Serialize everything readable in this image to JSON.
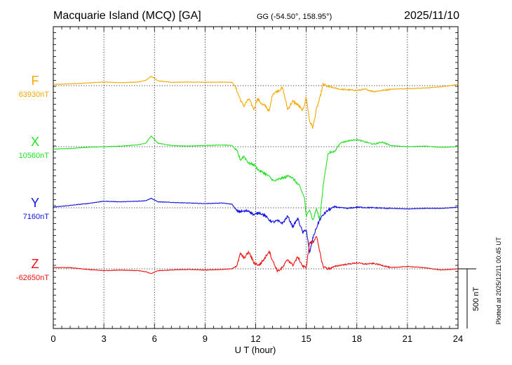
{
  "header": {
    "title": "Macquarie Island (MCQ)  [GA]",
    "coords": "GG (-54.50°, 158.95°)",
    "date": "2025/11/10"
  },
  "xaxis": {
    "label": "U T (hour)",
    "ticks": [
      "0",
      "3",
      "6",
      "9",
      "12",
      "15",
      "18",
      "21",
      "24"
    ]
  },
  "scale_bar": {
    "label": "500 nT",
    "value_nT": 500
  },
  "plotted_note": "Plotted at 2025/12/11 00:45 UT",
  "chart_data": {
    "type": "line",
    "title": "Macquarie Island (MCQ)  [GA]",
    "xlabel": "U T (hour)",
    "xlim": [
      0,
      24
    ],
    "scale_nT_per_division": 500,
    "grid": true,
    "series": [
      {
        "name": "F",
        "baseline_label": "63930nT",
        "baseline_nT": 63930,
        "color": "#f5a800",
        "points": [
          [
            0,
            10
          ],
          [
            1,
            15
          ],
          [
            2,
            22
          ],
          [
            3,
            30
          ],
          [
            4,
            25
          ],
          [
            5,
            30
          ],
          [
            5.5,
            45
          ],
          [
            5.8,
            80
          ],
          [
            6.2,
            40
          ],
          [
            7,
            28
          ],
          [
            8,
            30
          ],
          [
            9,
            28
          ],
          [
            10,
            30
          ],
          [
            10.6,
            28
          ],
          [
            10.8,
            -10
          ],
          [
            11.1,
            -120
          ],
          [
            11.3,
            -170
          ],
          [
            11.6,
            -110
          ],
          [
            11.9,
            -200
          ],
          [
            12.1,
            -110
          ],
          [
            12.4,
            -160
          ],
          [
            12.6,
            -170
          ],
          [
            12.8,
            -220
          ],
          [
            13.0,
            -70
          ],
          [
            13.3,
            -45
          ],
          [
            13.6,
            -20
          ],
          [
            13.9,
            -200
          ],
          [
            14.2,
            -130
          ],
          [
            14.5,
            -160
          ],
          [
            14.8,
            -210
          ],
          [
            15.0,
            -95
          ],
          [
            15.2,
            -300
          ],
          [
            15.4,
            -350
          ],
          [
            15.6,
            -200
          ],
          [
            15.8,
            -110
          ],
          [
            16.0,
            10
          ],
          [
            16.3,
            -10
          ],
          [
            16.7,
            -20
          ],
          [
            17,
            -30
          ],
          [
            17.5,
            -35
          ],
          [
            18,
            -40
          ],
          [
            18.5,
            -30
          ],
          [
            19,
            -50
          ],
          [
            19.5,
            -40
          ],
          [
            20,
            -30
          ],
          [
            21,
            -25
          ],
          [
            22,
            -20
          ],
          [
            23,
            -10
          ],
          [
            24,
            10
          ]
        ]
      },
      {
        "name": "X",
        "baseline_label": "10560nT",
        "baseline_nT": 10560,
        "color": "#22e022",
        "points": [
          [
            0,
            -20
          ],
          [
            1,
            -15
          ],
          [
            2,
            -5
          ],
          [
            3,
            0
          ],
          [
            4,
            5
          ],
          [
            5,
            15
          ],
          [
            5.5,
            30
          ],
          [
            5.8,
            90
          ],
          [
            6.2,
            30
          ],
          [
            7,
            10
          ],
          [
            8,
            5
          ],
          [
            9,
            10
          ],
          [
            10,
            15
          ],
          [
            10.6,
            10
          ],
          [
            10.9,
            -40
          ],
          [
            11.1,
            -110
          ],
          [
            11.3,
            -80
          ],
          [
            11.6,
            -140
          ],
          [
            11.9,
            -150
          ],
          [
            12.2,
            -200
          ],
          [
            12.5,
            -220
          ],
          [
            12.8,
            -250
          ],
          [
            13.1,
            -290
          ],
          [
            13.4,
            -270
          ],
          [
            13.7,
            -260
          ],
          [
            14.0,
            -240
          ],
          [
            14.3,
            -280
          ],
          [
            14.6,
            -330
          ],
          [
            14.9,
            -430
          ],
          [
            15.0,
            -590
          ],
          [
            15.2,
            -520
          ],
          [
            15.4,
            -620
          ],
          [
            15.6,
            -520
          ],
          [
            15.8,
            -610
          ],
          [
            16.0,
            -330
          ],
          [
            16.3,
            -50
          ],
          [
            16.7,
            -40
          ],
          [
            17,
            30
          ],
          [
            17.5,
            50
          ],
          [
            18,
            60
          ],
          [
            18.5,
            40
          ],
          [
            19,
            20
          ],
          [
            19.5,
            40
          ],
          [
            20,
            10
          ],
          [
            21,
            0
          ],
          [
            22,
            5
          ],
          [
            23,
            -5
          ],
          [
            24,
            0
          ]
        ]
      },
      {
        "name": "Y",
        "baseline_label": "7160nT",
        "baseline_nT": 7160,
        "color": "#1010e0",
        "points": [
          [
            0,
            5
          ],
          [
            1,
            20
          ],
          [
            2,
            35
          ],
          [
            3,
            55
          ],
          [
            4,
            50
          ],
          [
            5,
            55
          ],
          [
            5.5,
            60
          ],
          [
            5.8,
            80
          ],
          [
            6.2,
            50
          ],
          [
            7,
            45
          ],
          [
            8,
            40
          ],
          [
            9,
            35
          ],
          [
            10,
            40
          ],
          [
            10.6,
            30
          ],
          [
            10.9,
            -30
          ],
          [
            11.3,
            -30
          ],
          [
            11.6,
            -25
          ],
          [
            11.9,
            -60
          ],
          [
            12.2,
            -40
          ],
          [
            12.5,
            -60
          ],
          [
            12.8,
            -100
          ],
          [
            13.0,
            -120
          ],
          [
            13.3,
            -110
          ],
          [
            13.6,
            -130
          ],
          [
            13.9,
            -70
          ],
          [
            14.2,
            -160
          ],
          [
            14.5,
            -90
          ],
          [
            14.8,
            -210
          ],
          [
            15.0,
            -180
          ],
          [
            15.2,
            -380
          ],
          [
            15.4,
            -250
          ],
          [
            15.6,
            -170
          ],
          [
            15.8,
            -100
          ],
          [
            16.0,
            -60
          ],
          [
            16.3,
            -20
          ],
          [
            16.7,
            10
          ],
          [
            17,
            0
          ],
          [
            17.5,
            -5
          ],
          [
            18,
            5
          ],
          [
            19,
            0
          ],
          [
            20,
            -5
          ],
          [
            21,
            -10
          ],
          [
            22,
            -5
          ],
          [
            23,
            -5
          ],
          [
            24,
            5
          ]
        ]
      },
      {
        "name": "Z",
        "baseline_label": "-62650nT",
        "baseline_nT": -62650,
        "color": "#ee1010",
        "points": [
          [
            0,
            10
          ],
          [
            1,
            10
          ],
          [
            2,
            -5
          ],
          [
            3,
            -15
          ],
          [
            4,
            -10
          ],
          [
            5,
            -15
          ],
          [
            5.5,
            -25
          ],
          [
            5.8,
            -40
          ],
          [
            6.2,
            -15
          ],
          [
            7,
            -10
          ],
          [
            8,
            -5
          ],
          [
            9,
            -10
          ],
          [
            10,
            -5
          ],
          [
            10.6,
            0
          ],
          [
            10.9,
            30
          ],
          [
            11.1,
            130
          ],
          [
            11.3,
            90
          ],
          [
            11.6,
            140
          ],
          [
            11.9,
            50
          ],
          [
            12.2,
            30
          ],
          [
            12.5,
            80
          ],
          [
            12.8,
            150
          ],
          [
            13.0,
            70
          ],
          [
            13.3,
            -20
          ],
          [
            13.6,
            10
          ],
          [
            13.9,
            80
          ],
          [
            14.2,
            30
          ],
          [
            14.5,
            100
          ],
          [
            14.8,
            20
          ],
          [
            15.0,
            10
          ],
          [
            15.2,
            220
          ],
          [
            15.4,
            220
          ],
          [
            15.6,
            280
          ],
          [
            15.8,
            140
          ],
          [
            16.0,
            20
          ],
          [
            16.3,
            0
          ],
          [
            16.7,
            20
          ],
          [
            17,
            30
          ],
          [
            17.5,
            40
          ],
          [
            18,
            50
          ],
          [
            18.5,
            40
          ],
          [
            19,
            45
          ],
          [
            19.5,
            30
          ],
          [
            20,
            10
          ],
          [
            21,
            20
          ],
          [
            22,
            10
          ],
          [
            23,
            -10
          ],
          [
            24,
            0
          ]
        ]
      }
    ]
  }
}
